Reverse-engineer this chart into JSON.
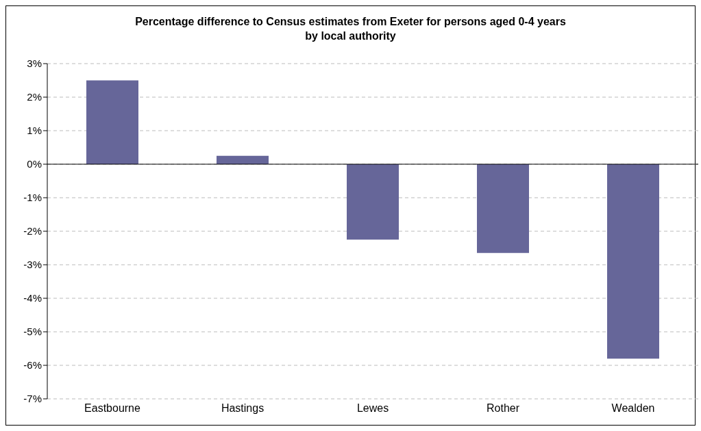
{
  "chart_data": {
    "type": "bar",
    "title": "Percentage difference to Census estimates from Exeter for persons aged 0-4 years by local authority",
    "categories": [
      "Eastbourne",
      "Hastings",
      "Lewes",
      "Rother",
      "Wealden"
    ],
    "values": [
      2.5,
      0.25,
      -2.25,
      -2.65,
      -5.8
    ],
    "color": "#666699",
    "ylim": [
      -7,
      3
    ],
    "yticks": [
      {
        "value": -7,
        "label": "-7%"
      },
      {
        "value": -6,
        "label": "-6%"
      },
      {
        "value": -5,
        "label": "-5%"
      },
      {
        "value": -4,
        "label": "-4%"
      },
      {
        "value": -3,
        "label": "-3%"
      },
      {
        "value": -2,
        "label": "-2%"
      },
      {
        "value": -1,
        "label": "-1%"
      },
      {
        "value": 0,
        "label": "0%"
      },
      {
        "value": 1,
        "label": "1%"
      },
      {
        "value": 2,
        "label": "2%"
      },
      {
        "value": 3,
        "label": "3%"
      }
    ],
    "grid": "y"
  }
}
